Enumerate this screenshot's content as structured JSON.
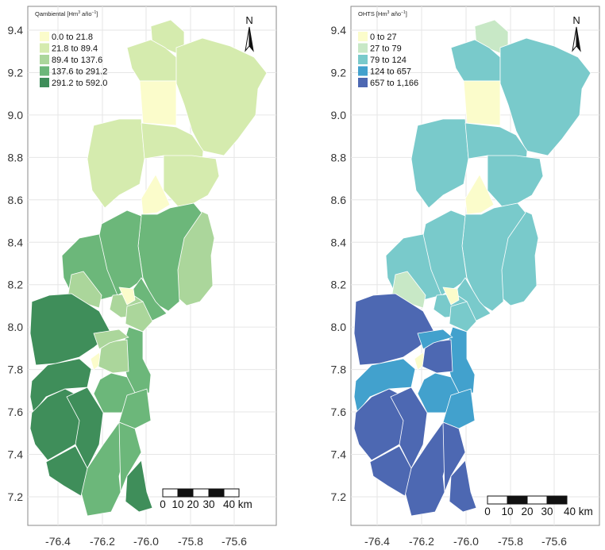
{
  "maps": [
    {
      "legend": {
        "title_main": "Qambiental [Hm",
        "title_sup1": "3",
        "title_mid": " año",
        "title_sup2": "−1",
        "title_end": "]",
        "classes": [
          {
            "label": "0.0 to 21.8",
            "color": "#fbfccb"
          },
          {
            "label": "21.8 to 89.4",
            "color": "#d5ebae"
          },
          {
            "label": "89.4 to 137.6",
            "color": "#abd69b"
          },
          {
            "label": "137.6 to 291.2",
            "color": "#6cb77a"
          },
          {
            "label": "291.2 to 592.0",
            "color": "#3f8e5a"
          }
        ]
      },
      "region_classes": [
        1,
        1,
        1,
        1,
        0,
        1,
        1,
        0,
        2,
        3,
        3,
        3,
        3,
        2,
        2,
        0,
        2,
        4,
        0,
        4,
        3,
        2,
        2,
        3,
        3,
        4,
        4,
        3,
        3,
        4,
        4
      ]
    },
    {
      "legend": {
        "title_main": "OHTS [Hm",
        "title_sup1": "3",
        "title_mid": " año",
        "title_sup2": "−1",
        "title_end": "]",
        "classes": [
          {
            "label": "0 to 27",
            "color": "#fbfccb"
          },
          {
            "label": "27 to 79",
            "color": "#c8e8c6"
          },
          {
            "label": "79 to 124",
            "color": "#79cacb"
          },
          {
            "label": "124 to 657",
            "color": "#42a1cd"
          },
          {
            "label": "657 to 1,166",
            "color": "#4d68b2"
          }
        ]
      },
      "region_classes": [
        1,
        2,
        2,
        2,
        0,
        2,
        2,
        0,
        2,
        2,
        2,
        2,
        2,
        1,
        2,
        0,
        2,
        4,
        0,
        3,
        3,
        4,
        3,
        3,
        3,
        4,
        4,
        4,
        4,
        4,
        4
      ]
    }
  ],
  "axes": {
    "y_ticks": [
      "9.4",
      "9.2",
      "9.0",
      "8.8",
      "8.6",
      "8.4",
      "8.2",
      "8.0",
      "7.8",
      "7.6",
      "7.4",
      "7.2"
    ],
    "y_values": [
      9.4,
      9.2,
      9.0,
      8.8,
      8.6,
      8.4,
      8.2,
      8.0,
      7.8,
      7.6,
      7.4,
      7.2
    ],
    "x_ticks": [
      "-76.4",
      "-76.2",
      "-76.0",
      "-75.8",
      "-75.6"
    ],
    "x_values": [
      -76.4,
      -76.2,
      -76.0,
      -75.8,
      -75.6
    ]
  },
  "north_arrow": {
    "label": "N"
  },
  "scale_bar": {
    "labels": [
      "0",
      "10",
      "20",
      "30",
      "40 km"
    ]
  }
}
